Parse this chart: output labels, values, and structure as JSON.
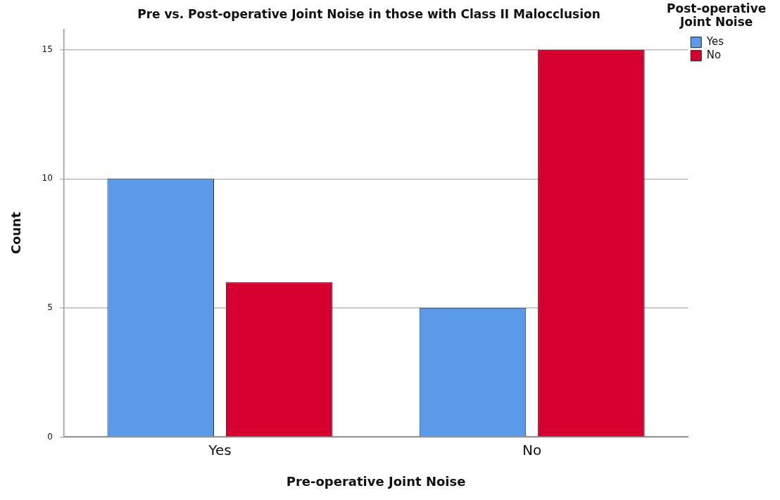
{
  "chart_data": {
    "type": "bar",
    "title": "Pre vs. Post-operative Joint Noise in those with Class II Malocclusion",
    "xlabel": "Pre-operative Joint Noise",
    "ylabel": "Count",
    "legend_title": "Post-operative Joint Noise",
    "categories": [
      "Yes",
      "No"
    ],
    "series": [
      {
        "name": "Yes",
        "color": "#5a9ae6",
        "values": [
          10,
          5
        ]
      },
      {
        "name": "No",
        "color": "#d5002f",
        "values": [
          6,
          15
        ]
      }
    ],
    "ylim": [
      0,
      15.8
    ],
    "yticks": [
      0,
      5,
      10,
      15
    ],
    "grid": "y",
    "legend": "top right"
  }
}
